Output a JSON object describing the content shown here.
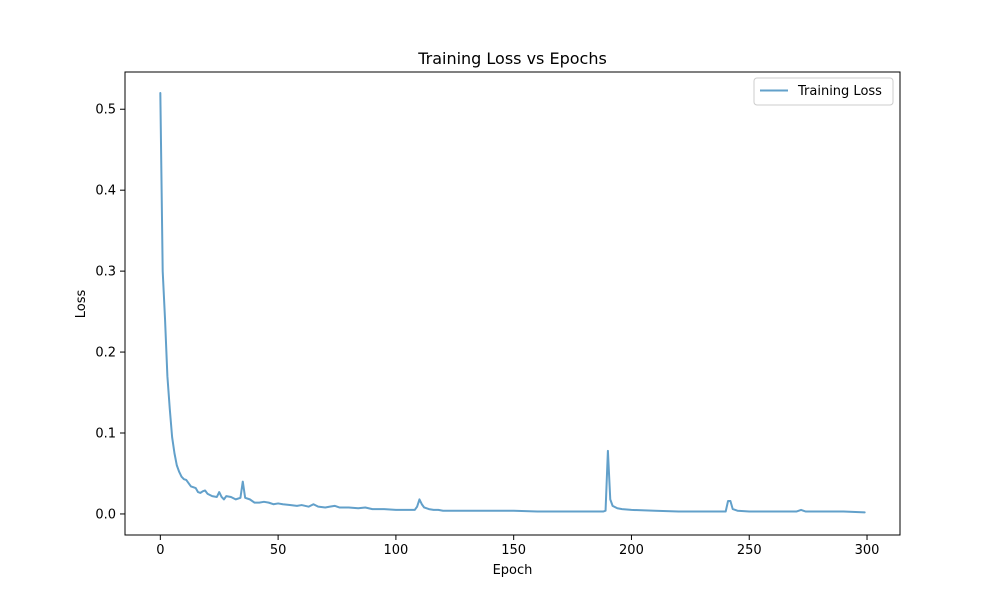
{
  "chart_data": {
    "type": "line",
    "title": "Training Loss vs Epochs",
    "xlabel": "Epoch",
    "ylabel": "Loss",
    "xlim": [
      -15,
      314
    ],
    "ylim": [
      -0.026,
      0.546
    ],
    "xticks": [
      0,
      50,
      100,
      150,
      200,
      250,
      300
    ],
    "yticks": [
      0.0,
      0.1,
      0.2,
      0.3,
      0.4,
      0.5
    ],
    "xtick_labels": [
      "0",
      "50",
      "100",
      "150",
      "200",
      "250",
      "300"
    ],
    "ytick_labels": [
      "0.0",
      "0.1",
      "0.2",
      "0.3",
      "0.4",
      "0.5"
    ],
    "grid": false,
    "legend_position": "top-right",
    "series": [
      {
        "name": "Training Loss",
        "color": "#1f77b4",
        "opacity": 0.7,
        "points": [
          [
            0,
            0.52
          ],
          [
            1,
            0.3
          ],
          [
            2,
            0.24
          ],
          [
            3,
            0.17
          ],
          [
            4,
            0.13
          ],
          [
            5,
            0.095
          ],
          [
            6,
            0.075
          ],
          [
            7,
            0.06
          ],
          [
            8,
            0.052
          ],
          [
            9,
            0.046
          ],
          [
            10,
            0.043
          ],
          [
            11,
            0.042
          ],
          [
            12,
            0.038
          ],
          [
            13,
            0.034
          ],
          [
            14,
            0.033
          ],
          [
            15,
            0.032
          ],
          [
            16,
            0.027
          ],
          [
            17,
            0.026
          ],
          [
            18,
            0.028
          ],
          [
            19,
            0.029
          ],
          [
            20,
            0.025
          ],
          [
            22,
            0.022
          ],
          [
            24,
            0.021
          ],
          [
            25,
            0.027
          ],
          [
            26,
            0.021
          ],
          [
            27,
            0.018
          ],
          [
            28,
            0.022
          ],
          [
            30,
            0.021
          ],
          [
            32,
            0.018
          ],
          [
            34,
            0.02
          ],
          [
            35,
            0.04
          ],
          [
            36,
            0.02
          ],
          [
            38,
            0.018
          ],
          [
            40,
            0.014
          ],
          [
            42,
            0.014
          ],
          [
            44,
            0.015
          ],
          [
            46,
            0.014
          ],
          [
            48,
            0.012
          ],
          [
            50,
            0.013
          ],
          [
            52,
            0.012
          ],
          [
            55,
            0.011
          ],
          [
            58,
            0.01
          ],
          [
            60,
            0.011
          ],
          [
            63,
            0.009
          ],
          [
            65,
            0.012
          ],
          [
            67,
            0.009
          ],
          [
            70,
            0.008
          ],
          [
            72,
            0.009
          ],
          [
            74,
            0.01
          ],
          [
            76,
            0.008
          ],
          [
            80,
            0.008
          ],
          [
            84,
            0.007
          ],
          [
            87,
            0.008
          ],
          [
            90,
            0.006
          ],
          [
            95,
            0.006
          ],
          [
            100,
            0.005
          ],
          [
            105,
            0.005
          ],
          [
            108,
            0.005
          ],
          [
            109,
            0.009
          ],
          [
            110,
            0.018
          ],
          [
            111,
            0.012
          ],
          [
            112,
            0.008
          ],
          [
            114,
            0.006
          ],
          [
            116,
            0.005
          ],
          [
            118,
            0.005
          ],
          [
            120,
            0.004
          ],
          [
            130,
            0.004
          ],
          [
            140,
            0.004
          ],
          [
            150,
            0.004
          ],
          [
            160,
            0.003
          ],
          [
            170,
            0.003
          ],
          [
            180,
            0.003
          ],
          [
            188,
            0.003
          ],
          [
            189,
            0.004
          ],
          [
            190,
            0.078
          ],
          [
            191,
            0.018
          ],
          [
            192,
            0.01
          ],
          [
            194,
            0.007
          ],
          [
            196,
            0.006
          ],
          [
            200,
            0.005
          ],
          [
            210,
            0.004
          ],
          [
            220,
            0.003
          ],
          [
            230,
            0.003
          ],
          [
            240,
            0.003
          ],
          [
            241,
            0.016
          ],
          [
            242,
            0.016
          ],
          [
            243,
            0.006
          ],
          [
            245,
            0.004
          ],
          [
            250,
            0.003
          ],
          [
            260,
            0.003
          ],
          [
            270,
            0.003
          ],
          [
            272,
            0.005
          ],
          [
            274,
            0.003
          ],
          [
            280,
            0.003
          ],
          [
            290,
            0.003
          ],
          [
            299,
            0.002
          ]
        ]
      }
    ]
  }
}
